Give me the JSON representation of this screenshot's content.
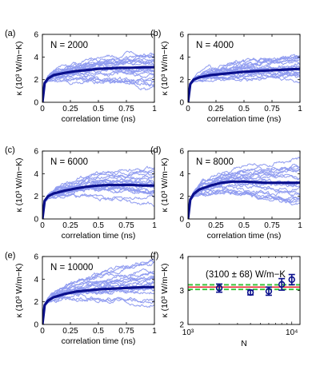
{
  "colors": {
    "thin_line": "#8f9bf0",
    "mean_line": "#0a0f8c",
    "marker": "#0a0f8c",
    "fit_line": "#e8202a",
    "band_line": "#3cc43c"
  },
  "chart_data": [
    {
      "panel": "(a)",
      "type": "line",
      "annotation": "N = 2000",
      "xlabel": "correlation time (ns)",
      "ylabel": "κ (10³ W/m−K)",
      "xlim": [
        0,
        1
      ],
      "ylim": [
        0,
        6
      ],
      "xticks": [
        "0",
        "0.25",
        "0.5",
        "0.75",
        "1"
      ],
      "yticks": [
        "0",
        "2",
        "4",
        "6"
      ],
      "mean": {
        "x": [
          0,
          0.02,
          0.05,
          0.1,
          0.2,
          0.3,
          0.4,
          0.5,
          0.6,
          0.7,
          0.8,
          0.9,
          1.0
        ],
        "y": [
          0,
          1.7,
          2.1,
          2.4,
          2.6,
          2.75,
          2.85,
          2.95,
          3.0,
          3.05,
          3.05,
          3.1,
          3.1
        ]
      },
      "spread_at_end": [
        1.5,
        4.6
      ]
    },
    {
      "panel": "(b)",
      "type": "line",
      "annotation": "N = 4000",
      "xlabel": "correlation time (ns)",
      "ylabel": "κ (10³ W/m−K)",
      "xlim": [
        0,
        1
      ],
      "ylim": [
        0,
        6
      ],
      "xticks": [
        "0",
        "0.25",
        "0.5",
        "0.75",
        "1"
      ],
      "yticks": [
        "0",
        "2",
        "4",
        "6"
      ],
      "mean": {
        "x": [
          0,
          0.02,
          0.05,
          0.1,
          0.2,
          0.3,
          0.4,
          0.5,
          0.6,
          0.7,
          0.8,
          0.9,
          1.0
        ],
        "y": [
          0,
          1.6,
          2.0,
          2.2,
          2.4,
          2.5,
          2.6,
          2.7,
          2.75,
          2.8,
          2.85,
          2.9,
          2.95
        ]
      },
      "spread_at_end": [
        2.0,
        4.0
      ]
    },
    {
      "panel": "(c)",
      "type": "line",
      "annotation": "N = 6000",
      "xlabel": "correlation time (ns)",
      "ylabel": "κ (10³ W/m−K)",
      "xlim": [
        0,
        1
      ],
      "ylim": [
        0,
        6
      ],
      "xticks": [
        "0",
        "0.25",
        "0.5",
        "0.75",
        "1"
      ],
      "yticks": [
        "0",
        "2",
        "4",
        "6"
      ],
      "mean": {
        "x": [
          0,
          0.02,
          0.05,
          0.1,
          0.2,
          0.3,
          0.4,
          0.5,
          0.6,
          0.7,
          0.8,
          0.9,
          1.0
        ],
        "y": [
          0,
          1.6,
          2.0,
          2.25,
          2.5,
          2.7,
          2.85,
          2.95,
          3.0,
          3.0,
          3.0,
          2.95,
          2.95
        ]
      },
      "spread_at_end": [
        1.7,
        4.3
      ]
    },
    {
      "panel": "(d)",
      "type": "line",
      "annotation": "N = 8000",
      "xlabel": "correlation time (ns)",
      "ylabel": "κ (10³ W/m−K)",
      "xlim": [
        0,
        1
      ],
      "ylim": [
        0,
        6
      ],
      "xticks": [
        "0",
        "0.25",
        "0.5",
        "0.75",
        "1"
      ],
      "yticks": [
        "0",
        "2",
        "4",
        "6"
      ],
      "mean": {
        "x": [
          0,
          0.02,
          0.05,
          0.1,
          0.2,
          0.3,
          0.4,
          0.5,
          0.6,
          0.7,
          0.8,
          0.9,
          1.0
        ],
        "y": [
          0,
          1.7,
          2.2,
          2.6,
          2.95,
          3.2,
          3.3,
          3.3,
          3.25,
          3.2,
          3.2,
          3.2,
          3.2
        ]
      },
      "spread_at_end": [
        1.3,
        5.2
      ]
    },
    {
      "panel": "(e)",
      "type": "line",
      "annotation": "N = 10000",
      "xlabel": "correlation time (ns)",
      "ylabel": "κ (10³ W/m−K)",
      "xlim": [
        0,
        1
      ],
      "ylim": [
        0,
        6
      ],
      "xticks": [
        "0",
        "0.25",
        "0.5",
        "0.75",
        "1"
      ],
      "yticks": [
        "0",
        "2",
        "4",
        "6"
      ],
      "mean": {
        "x": [
          0,
          0.02,
          0.05,
          0.1,
          0.2,
          0.3,
          0.4,
          0.5,
          0.6,
          0.7,
          0.8,
          0.9,
          1.0
        ],
        "y": [
          0,
          1.7,
          2.1,
          2.4,
          2.7,
          2.9,
          3.0,
          3.1,
          3.15,
          3.2,
          3.25,
          3.3,
          3.3
        ]
      },
      "spread_at_end": [
        2.0,
        5.5
      ]
    },
    {
      "panel": "(f)",
      "type": "scatter",
      "annotation": "(3100 ± 68) W/m−K",
      "xlabel": "N",
      "ylabel": "κ (10³ W/m−K)",
      "xscale": "log",
      "xlim": [
        1000,
        12000
      ],
      "ylim": [
        2,
        4
      ],
      "xticks": [
        "10³",
        "10⁴"
      ],
      "yticks": [
        "2",
        "3",
        "4"
      ],
      "points": [
        {
          "x": 2000,
          "y": 3.07,
          "err": 0.12
        },
        {
          "x": 4000,
          "y": 2.94,
          "err": 0.07
        },
        {
          "x": 6000,
          "y": 2.98,
          "err": 0.12
        },
        {
          "x": 8000,
          "y": 3.18,
          "err": 0.17
        },
        {
          "x": 10000,
          "y": 3.32,
          "err": 0.15
        }
      ],
      "fit": 3.1,
      "band": [
        3.032,
        3.168
      ]
    }
  ]
}
